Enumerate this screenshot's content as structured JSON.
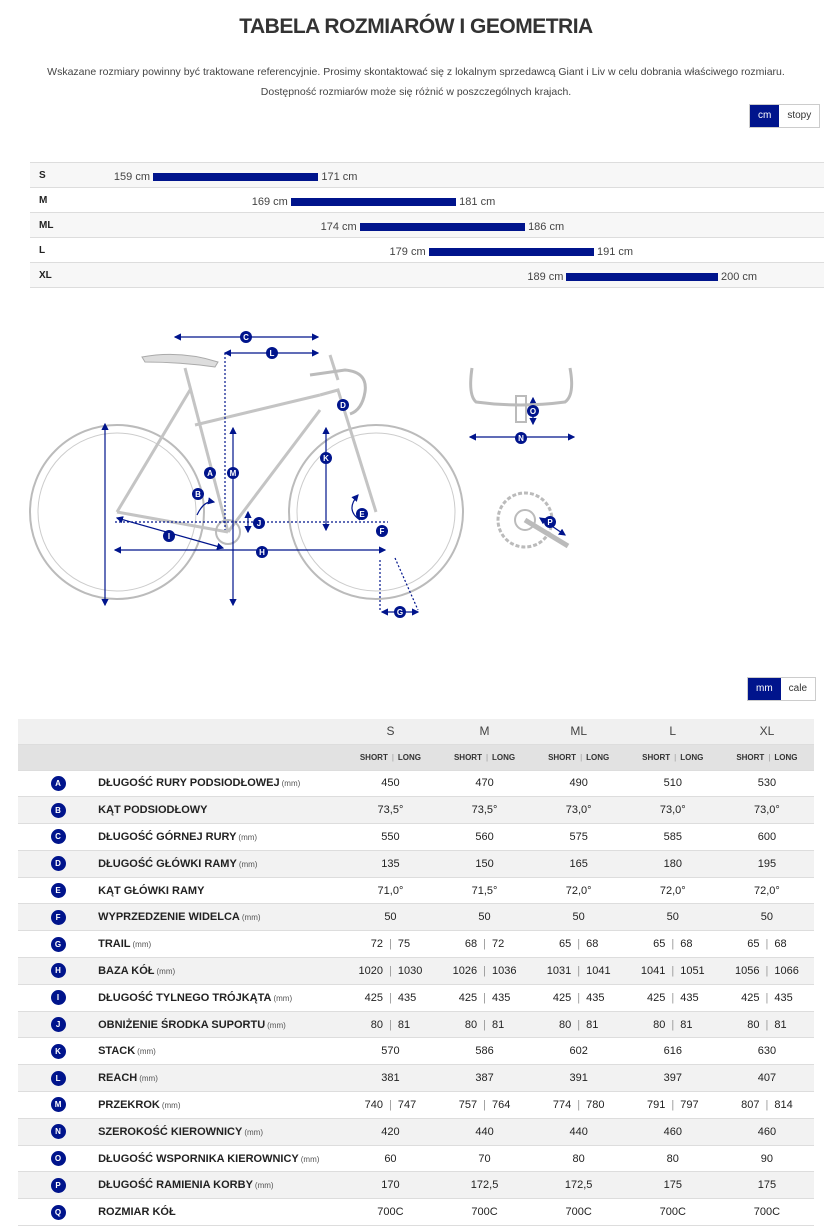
{
  "title": "TABELA ROZMIARÓW I GEOMETRIA",
  "intro_line1": "Wskazane rozmiary powinny być traktowane referencyjnie. Prosimy skontaktować się z lokalnym sprzedawcą Giant i Liv w celu dobrania właściwego rozmiaru.",
  "intro_line2": "Dostępność rozmiarów może się różnić w poszczególnych krajach.",
  "unit_toggle_height": {
    "active": "cm",
    "inactive": "stopy"
  },
  "unit_toggle_geometry": {
    "active": "mm",
    "inactive": "cale"
  },
  "height_ranges": [
    {
      "size": "S",
      "min": 159,
      "max": 171,
      "min_label": "159 cm",
      "max_label": "171 cm"
    },
    {
      "size": "M",
      "min": 169,
      "max": 181,
      "min_label": "169 cm",
      "max_label": "181 cm"
    },
    {
      "size": "ML",
      "min": 174,
      "max": 186,
      "min_label": "174 cm",
      "max_label": "186 cm"
    },
    {
      "size": "L",
      "min": 179,
      "max": 191,
      "min_label": "179 cm",
      "max_label": "191 cm"
    },
    {
      "size": "XL",
      "min": 189,
      "max": 200,
      "min_label": "189 cm",
      "max_label": "200 cm"
    }
  ],
  "diagram_labels": [
    "A",
    "B",
    "C",
    "D",
    "E",
    "F",
    "G",
    "H",
    "I",
    "J",
    "K",
    "L",
    "M",
    "N",
    "O",
    "P"
  ],
  "colors": {
    "accent": "#00148c",
    "frame": "#c8c8c8"
  },
  "table": {
    "sizes": [
      "S",
      "M",
      "ML",
      "L",
      "XL"
    ],
    "subheader": {
      "short": "SHORT",
      "long": "LONG",
      "sep": "|"
    },
    "rows": [
      {
        "key": "A",
        "name": "DŁUGOŚĆ RURY PODSIODŁOWEJ",
        "unit": "(mm)",
        "values": [
          "450",
          "470",
          "490",
          "510",
          "530"
        ]
      },
      {
        "key": "B",
        "name": "KĄT PODSIODŁOWY",
        "unit": "",
        "values": [
          "73,5°",
          "73,5°",
          "73,0°",
          "73,0°",
          "73,0°"
        ]
      },
      {
        "key": "C",
        "name": "DŁUGOŚĆ GÓRNEJ RURY",
        "unit": "(mm)",
        "values": [
          "550",
          "560",
          "575",
          "585",
          "600"
        ]
      },
      {
        "key": "D",
        "name": "DŁUGOŚĆ GŁÓWKI RAMY",
        "unit": "(mm)",
        "values": [
          "135",
          "150",
          "165",
          "180",
          "195"
        ]
      },
      {
        "key": "E",
        "name": "KĄT GŁÓWKI RAMY",
        "unit": "",
        "values": [
          "71,0°",
          "71,5°",
          "72,0°",
          "72,0°",
          "72,0°"
        ]
      },
      {
        "key": "F",
        "name": "WYPRZEDZENIE WIDELCA",
        "unit": "(mm)",
        "values": [
          "50",
          "50",
          "50",
          "50",
          "50"
        ]
      },
      {
        "key": "G",
        "name": "TRAIL",
        "unit": "(mm)",
        "pairs": [
          [
            "72",
            "75"
          ],
          [
            "68",
            "72"
          ],
          [
            "65",
            "68"
          ],
          [
            "65",
            "68"
          ],
          [
            "65",
            "68"
          ]
        ]
      },
      {
        "key": "H",
        "name": "BAZA KÓŁ",
        "unit": "(mm)",
        "pairs": [
          [
            "1020",
            "1030"
          ],
          [
            "1026",
            "1036"
          ],
          [
            "1031",
            "1041"
          ],
          [
            "1041",
            "1051"
          ],
          [
            "1056",
            "1066"
          ]
        ]
      },
      {
        "key": "I",
        "name": "DŁUGOŚĆ TYLNEGO TRÓJKĄTA",
        "unit": "(mm)",
        "pairs": [
          [
            "425",
            "435"
          ],
          [
            "425",
            "435"
          ],
          [
            "425",
            "435"
          ],
          [
            "425",
            "435"
          ],
          [
            "425",
            "435"
          ]
        ]
      },
      {
        "key": "J",
        "name": "OBNIŻENIE ŚRODKA SUPORTU",
        "unit": "(mm)",
        "pairs": [
          [
            "80",
            "81"
          ],
          [
            "80",
            "81"
          ],
          [
            "80",
            "81"
          ],
          [
            "80",
            "81"
          ],
          [
            "80",
            "81"
          ]
        ]
      },
      {
        "key": "K",
        "name": "STACK",
        "unit": "(mm)",
        "values": [
          "570",
          "586",
          "602",
          "616",
          "630"
        ]
      },
      {
        "key": "L",
        "name": "REACH",
        "unit": "(mm)",
        "values": [
          "381",
          "387",
          "391",
          "397",
          "407"
        ]
      },
      {
        "key": "M",
        "name": "PRZEKROK",
        "unit": "(mm)",
        "pairs": [
          [
            "740",
            "747"
          ],
          [
            "757",
            "764"
          ],
          [
            "774",
            "780"
          ],
          [
            "791",
            "797"
          ],
          [
            "807",
            "814"
          ]
        ]
      },
      {
        "key": "N",
        "name": "SZEROKOŚĆ KIEROWNICY",
        "unit": "(mm)",
        "values": [
          "420",
          "440",
          "440",
          "460",
          "460"
        ]
      },
      {
        "key": "O",
        "name": "DŁUGOŚĆ WSPORNIKA KIEROWNICY",
        "unit": "(mm)",
        "values": [
          "60",
          "70",
          "80",
          "80",
          "90"
        ]
      },
      {
        "key": "P",
        "name": "DŁUGOŚĆ RAMIENIA KORBY",
        "unit": "(mm)",
        "values": [
          "170",
          "172,5",
          "172,5",
          "175",
          "175"
        ]
      },
      {
        "key": "Q",
        "name": "ROZMIAR KÓŁ",
        "unit": "",
        "values": [
          "700C",
          "700C",
          "700C",
          "700C",
          "700C"
        ]
      }
    ]
  }
}
